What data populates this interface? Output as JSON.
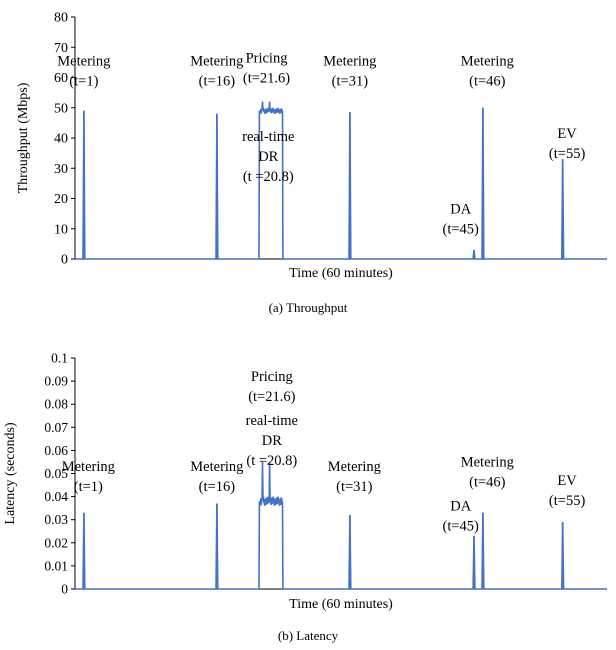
{
  "chart_data": [
    {
      "type": "line",
      "caption": "(a) Throughput",
      "xlabel": "Time (60 minutes)",
      "ylabel": "Throughput (Mbps)",
      "ylim": [
        0,
        80
      ],
      "xlim": [
        0,
        60
      ],
      "yticks": [
        "0",
        "10",
        "20",
        "30",
        "40",
        "50",
        "60",
        "70",
        "80"
      ],
      "grid": false,
      "series_color": "#4472C4",
      "spikes": [
        {
          "t": 1,
          "peak": 49,
          "width": 0.2
        },
        {
          "t": 16,
          "peak": 48,
          "width": 0.2
        },
        {
          "t": 31,
          "peak": 48.5,
          "width": 0.2
        },
        {
          "t": 45,
          "peak": 3,
          "width": 0.2
        },
        {
          "t": 46,
          "peak": 50,
          "width": 0.2
        },
        {
          "t": 55,
          "peak": 33,
          "width": 0.2
        }
      ],
      "burst": {
        "start": 20.8,
        "end": 23.4,
        "level": 49,
        "peak": 52,
        "noise": 2
      },
      "annotations": [
        {
          "t": 1,
          "y": 64,
          "lines": [
            "Metering",
            "(t=1)"
          ]
        },
        {
          "t": 16,
          "y": 64,
          "lines": [
            "Metering",
            "(t=16)"
          ]
        },
        {
          "t": 21.6,
          "y": 65,
          "lines": [
            "Pricing",
            "(t=21.6)"
          ]
        },
        {
          "t": 21.8,
          "y": 39,
          "lines": [
            "real-time",
            "DR",
            "(t =20.8)"
          ]
        },
        {
          "t": 31,
          "y": 64,
          "lines": [
            "Metering",
            "(t=31)"
          ]
        },
        {
          "t": 43.5,
          "y": 15,
          "lines": [
            "DA",
            "(t=45)"
          ]
        },
        {
          "t": 46.5,
          "y": 64,
          "lines": [
            "Metering",
            "(t=46)"
          ]
        },
        {
          "t": 55.5,
          "y": 40,
          "lines": [
            "EV",
            "(t=55)"
          ]
        }
      ]
    },
    {
      "type": "line",
      "caption": "(b) Latency",
      "xlabel": "Time (60 minutes)",
      "ylabel": "Latency (seconds)",
      "ylim": [
        0,
        0.1
      ],
      "xlim": [
        0,
        60
      ],
      "yticks": [
        "0",
        "0.01",
        "0.02",
        "0.03",
        "0.04",
        "0.05",
        "0.06",
        "0.07",
        "0.08",
        "0.09",
        "0.1"
      ],
      "grid": false,
      "series_color": "#4472C4",
      "spikes": [
        {
          "t": 1,
          "peak": 0.033,
          "width": 0.2
        },
        {
          "t": 16,
          "peak": 0.037,
          "width": 0.2
        },
        {
          "t": 31,
          "peak": 0.032,
          "width": 0.2
        },
        {
          "t": 45,
          "peak": 0.023,
          "width": 0.2
        },
        {
          "t": 46,
          "peak": 0.033,
          "width": 0.2
        },
        {
          "t": 55,
          "peak": 0.029,
          "width": 0.2
        }
      ],
      "burst": {
        "start": 20.8,
        "end": 23.4,
        "level": 0.038,
        "peak": 0.055,
        "noise": 0.004
      },
      "annotations": [
        {
          "t": 1.5,
          "y": 0.051,
          "lines": [
            "Metering",
            "(t=1)"
          ]
        },
        {
          "t": 16,
          "y": 0.051,
          "lines": [
            "Metering",
            "(t=16)"
          ]
        },
        {
          "t": 22.2,
          "y": 0.09,
          "lines": [
            "Pricing",
            "(t=21.6)"
          ]
        },
        {
          "t": 22.2,
          "y": 0.071,
          "lines": [
            "real-time",
            "DR",
            "(t =20.8)"
          ]
        },
        {
          "t": 31.5,
          "y": 0.051,
          "lines": [
            "Metering",
            "(t=31)"
          ]
        },
        {
          "t": 43.5,
          "y": 0.034,
          "lines": [
            "DA",
            "(t=45)"
          ]
        },
        {
          "t": 46.5,
          "y": 0.053,
          "lines": [
            "Metering",
            "(t=46)"
          ]
        },
        {
          "t": 55.5,
          "y": 0.045,
          "lines": [
            "EV",
            "(t=55)"
          ]
        }
      ]
    }
  ]
}
